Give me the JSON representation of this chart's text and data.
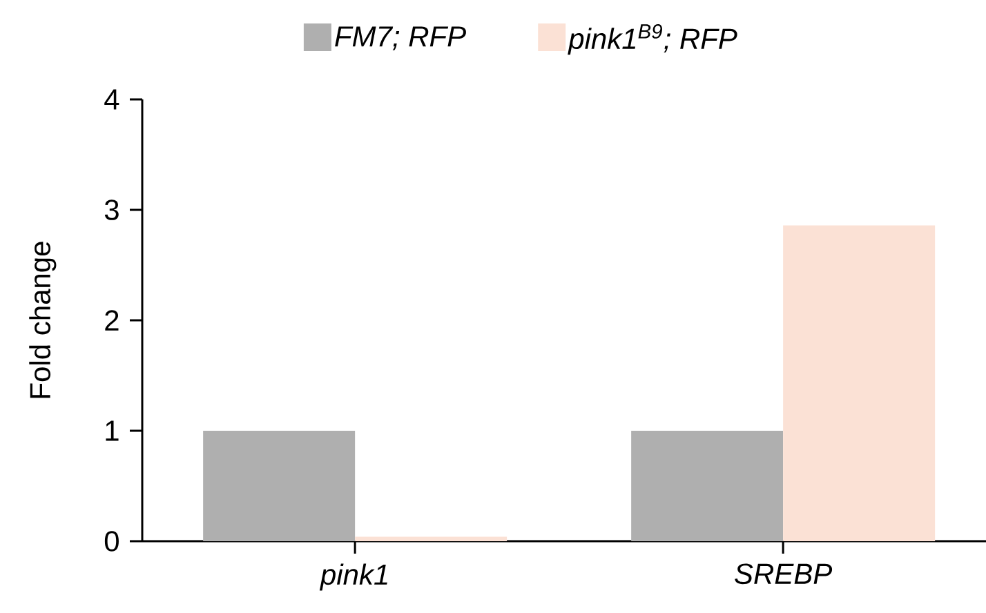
{
  "chart_data": {
    "type": "bar",
    "ylabel": "Fold change",
    "categories": [
      "pink1",
      "SREBP"
    ],
    "ylim": [
      0,
      4
    ],
    "yticks": [
      0,
      1,
      2,
      3,
      4
    ],
    "legend": "top",
    "series": [
      {
        "name": "FM7; RFP",
        "color": "#afafaf",
        "values": [
          1,
          1
        ]
      },
      {
        "name": "pink1$^{B9}$; RFP",
        "color": "#fbe1d5",
        "values": [
          0.04,
          2.86
        ]
      }
    ]
  }
}
